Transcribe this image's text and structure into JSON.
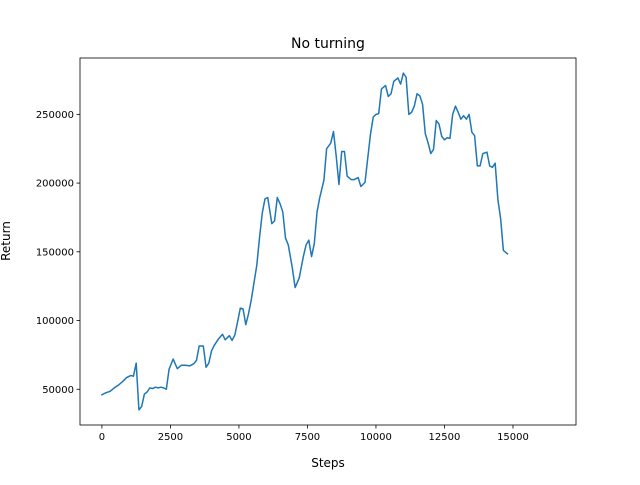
{
  "chart_data": {
    "type": "line",
    "title": "No turning",
    "xlabel": "Steps",
    "ylabel": "Return",
    "xlim": [
      -800,
      17300
    ],
    "ylim": [
      24000,
      291000
    ],
    "xticks": [
      0,
      2500,
      5000,
      7500,
      10000,
      12500,
      15000
    ],
    "xtick_labels": [
      "0",
      "2500",
      "5000",
      "7500",
      "10000",
      "12500",
      "15000"
    ],
    "yticks": [
      50000,
      100000,
      150000,
      200000,
      250000
    ],
    "ytick_labels": [
      "50000",
      "100000",
      "150000",
      "200000",
      "250000"
    ],
    "grid": false,
    "colors": {
      "line": "#1f77b4",
      "axes": "#000000"
    },
    "series": [
      {
        "points": [
          [
            0,
            46000
          ],
          [
            150,
            47500
          ],
          [
            300,
            48500
          ],
          [
            450,
            51000
          ],
          [
            600,
            53000
          ],
          [
            750,
            55500
          ],
          [
            900,
            58500
          ],
          [
            1050,
            60000
          ],
          [
            1150,
            59500
          ],
          [
            1250,
            69000
          ],
          [
            1350,
            35000
          ],
          [
            1450,
            37500
          ],
          [
            1550,
            46500
          ],
          [
            1650,
            48000
          ],
          [
            1750,
            51000
          ],
          [
            1850,
            50500
          ],
          [
            1950,
            51500
          ],
          [
            2050,
            51000
          ],
          [
            2150,
            51500
          ],
          [
            2250,
            51000
          ],
          [
            2350,
            50000
          ],
          [
            2450,
            64500
          ],
          [
            2600,
            72000
          ],
          [
            2750,
            65000
          ],
          [
            2900,
            67500
          ],
          [
            3050,
            67500
          ],
          [
            3200,
            67000
          ],
          [
            3350,
            68500
          ],
          [
            3450,
            71000
          ],
          [
            3550,
            81500
          ],
          [
            3700,
            81500
          ],
          [
            3800,
            66000
          ],
          [
            3900,
            69000
          ],
          [
            4000,
            78000
          ],
          [
            4100,
            82000
          ],
          [
            4250,
            86500
          ],
          [
            4400,
            90000
          ],
          [
            4500,
            86000
          ],
          [
            4650,
            89000
          ],
          [
            4750,
            85500
          ],
          [
            4850,
            89500
          ],
          [
            4950,
            99000
          ],
          [
            5050,
            109000
          ],
          [
            5150,
            108500
          ],
          [
            5250,
            97000
          ],
          [
            5350,
            105000
          ],
          [
            5450,
            115000
          ],
          [
            5650,
            140000
          ],
          [
            5750,
            160000
          ],
          [
            5850,
            178000
          ],
          [
            5950,
            188500
          ],
          [
            6050,
            189500
          ],
          [
            6200,
            170500
          ],
          [
            6300,
            172500
          ],
          [
            6400,
            189500
          ],
          [
            6500,
            185000
          ],
          [
            6600,
            179000
          ],
          [
            6700,
            160000
          ],
          [
            6800,
            155000
          ],
          [
            6950,
            138000
          ],
          [
            7050,
            124000
          ],
          [
            7200,
            131000
          ],
          [
            7350,
            146500
          ],
          [
            7450,
            155000
          ],
          [
            7550,
            158500
          ],
          [
            7650,
            146500
          ],
          [
            7750,
            156000
          ],
          [
            7850,
            179000
          ],
          [
            7950,
            189500
          ],
          [
            8100,
            202000
          ],
          [
            8200,
            225000
          ],
          [
            8350,
            229000
          ],
          [
            8450,
            237500
          ],
          [
            8550,
            219500
          ],
          [
            8650,
            199000
          ],
          [
            8750,
            223000
          ],
          [
            8850,
            223000
          ],
          [
            8950,
            205000
          ],
          [
            9100,
            202500
          ],
          [
            9200,
            202500
          ],
          [
            9350,
            204000
          ],
          [
            9450,
            197500
          ],
          [
            9600,
            200500
          ],
          [
            9700,
            218000
          ],
          [
            9800,
            235500
          ],
          [
            9900,
            248000
          ],
          [
            10000,
            250000
          ],
          [
            10100,
            250500
          ],
          [
            10200,
            268500
          ],
          [
            10350,
            271000
          ],
          [
            10450,
            263000
          ],
          [
            10550,
            265000
          ],
          [
            10650,
            274000
          ],
          [
            10800,
            276500
          ],
          [
            10900,
            272000
          ],
          [
            11000,
            280000
          ],
          [
            11100,
            277000
          ],
          [
            11200,
            250000
          ],
          [
            11300,
            251500
          ],
          [
            11400,
            256000
          ],
          [
            11500,
            265000
          ],
          [
            11600,
            263500
          ],
          [
            11700,
            257500
          ],
          [
            11800,
            236000
          ],
          [
            11900,
            229500
          ],
          [
            12000,
            221500
          ],
          [
            12100,
            224500
          ],
          [
            12200,
            245500
          ],
          [
            12300,
            243000
          ],
          [
            12400,
            234000
          ],
          [
            12500,
            231500
          ],
          [
            12600,
            233000
          ],
          [
            12700,
            232500
          ],
          [
            12800,
            250000
          ],
          [
            12900,
            256000
          ],
          [
            13000,
            251500
          ],
          [
            13100,
            246500
          ],
          [
            13200,
            249000
          ],
          [
            13300,
            246500
          ],
          [
            13400,
            250000
          ],
          [
            13500,
            237000
          ],
          [
            13600,
            234500
          ],
          [
            13700,
            212500
          ],
          [
            13800,
            212500
          ],
          [
            13900,
            221500
          ],
          [
            14050,
            222500
          ],
          [
            14150,
            212500
          ],
          [
            14250,
            211500
          ],
          [
            14350,
            214500
          ],
          [
            14450,
            188000
          ],
          [
            14550,
            174000
          ],
          [
            14650,
            151000
          ],
          [
            14800,
            148500
          ]
        ]
      }
    ]
  }
}
